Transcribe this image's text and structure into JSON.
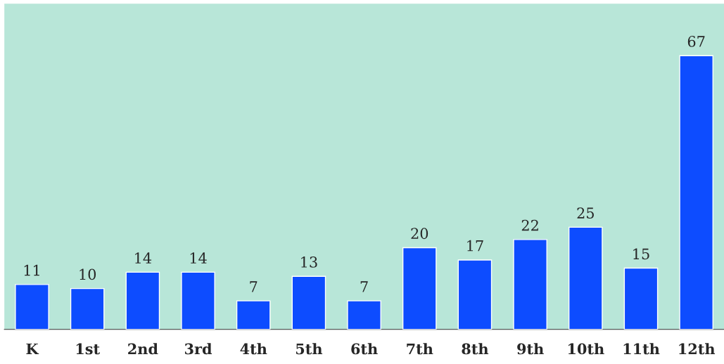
{
  "chart_data": {
    "type": "bar",
    "categories": [
      "K",
      "1st",
      "2nd",
      "3rd",
      "4th",
      "5th",
      "6th",
      "7th",
      "8th",
      "9th",
      "10th",
      "11th",
      "12th"
    ],
    "values": [
      11,
      10,
      14,
      14,
      7,
      13,
      7,
      20,
      17,
      22,
      25,
      15,
      67
    ],
    "color": "#0d4cff",
    "data_labels": true,
    "grid": false,
    "legend": false
  }
}
